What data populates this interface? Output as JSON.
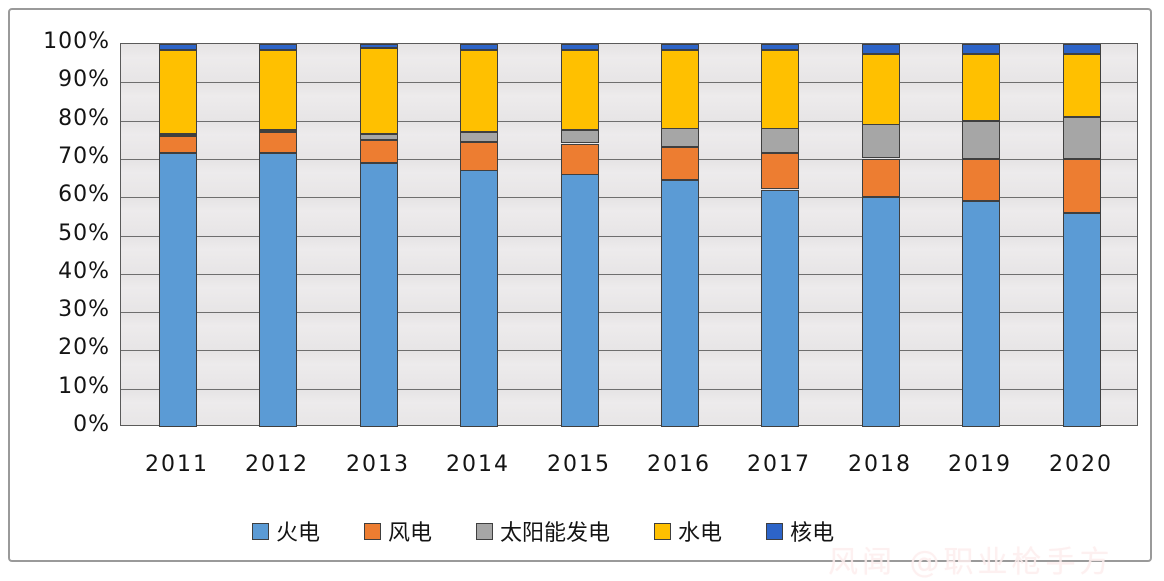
{
  "chart_data": {
    "type": "bar",
    "stacked": true,
    "stack_unit": "percent",
    "title": "",
    "xlabel": "",
    "ylabel": "",
    "categories": [
      "2011",
      "2012",
      "2013",
      "2014",
      "2015",
      "2016",
      "2017",
      "2018",
      "2019",
      "2020"
    ],
    "series": [
      {
        "name": "火电",
        "color": "#5b9bd5",
        "values": [
          71.5,
          71.5,
          69.0,
          67.0,
          66.0,
          64.5,
          62.0,
          60.0,
          59.0,
          56.0
        ]
      },
      {
        "name": "风电",
        "color": "#ed7d31",
        "values": [
          4.5,
          5.5,
          6.0,
          7.5,
          8.0,
          8.5,
          9.5,
          10.0,
          11.0,
          14.0
        ]
      },
      {
        "name": "太阳能发电",
        "color": "#a6a6a6",
        "values": [
          0.5,
          0.5,
          1.5,
          2.5,
          3.5,
          5.0,
          6.5,
          9.0,
          10.0,
          11.0
        ]
      },
      {
        "name": "水电",
        "color": "#ffc000",
        "values": [
          22.0,
          21.0,
          22.5,
          21.5,
          21.0,
          20.5,
          20.5,
          18.5,
          17.5,
          16.5
        ]
      },
      {
        "name": "核电",
        "color": "#2d64c8",
        "values": [
          1.5,
          1.5,
          1.0,
          1.5,
          1.5,
          1.5,
          1.5,
          2.5,
          2.5,
          2.5
        ]
      }
    ],
    "ylim": [
      0,
      100
    ],
    "y_ticks": [
      "0%",
      "10%",
      "20%",
      "30%",
      "40%",
      "50%",
      "60%",
      "70%",
      "80%",
      "90%",
      "100%"
    ],
    "grid": "horizontal gridlines every 10%",
    "legend_position": "bottom"
  },
  "watermark": {
    "text": "风闻 @职业枪手方"
  },
  "colors": {
    "plot_background": "#e9e7e8",
    "gridline": "#6e6e6e",
    "segment_border": "#3f3f3f",
    "frame_border": "#9a9a9a",
    "axis_text": "#141414"
  }
}
